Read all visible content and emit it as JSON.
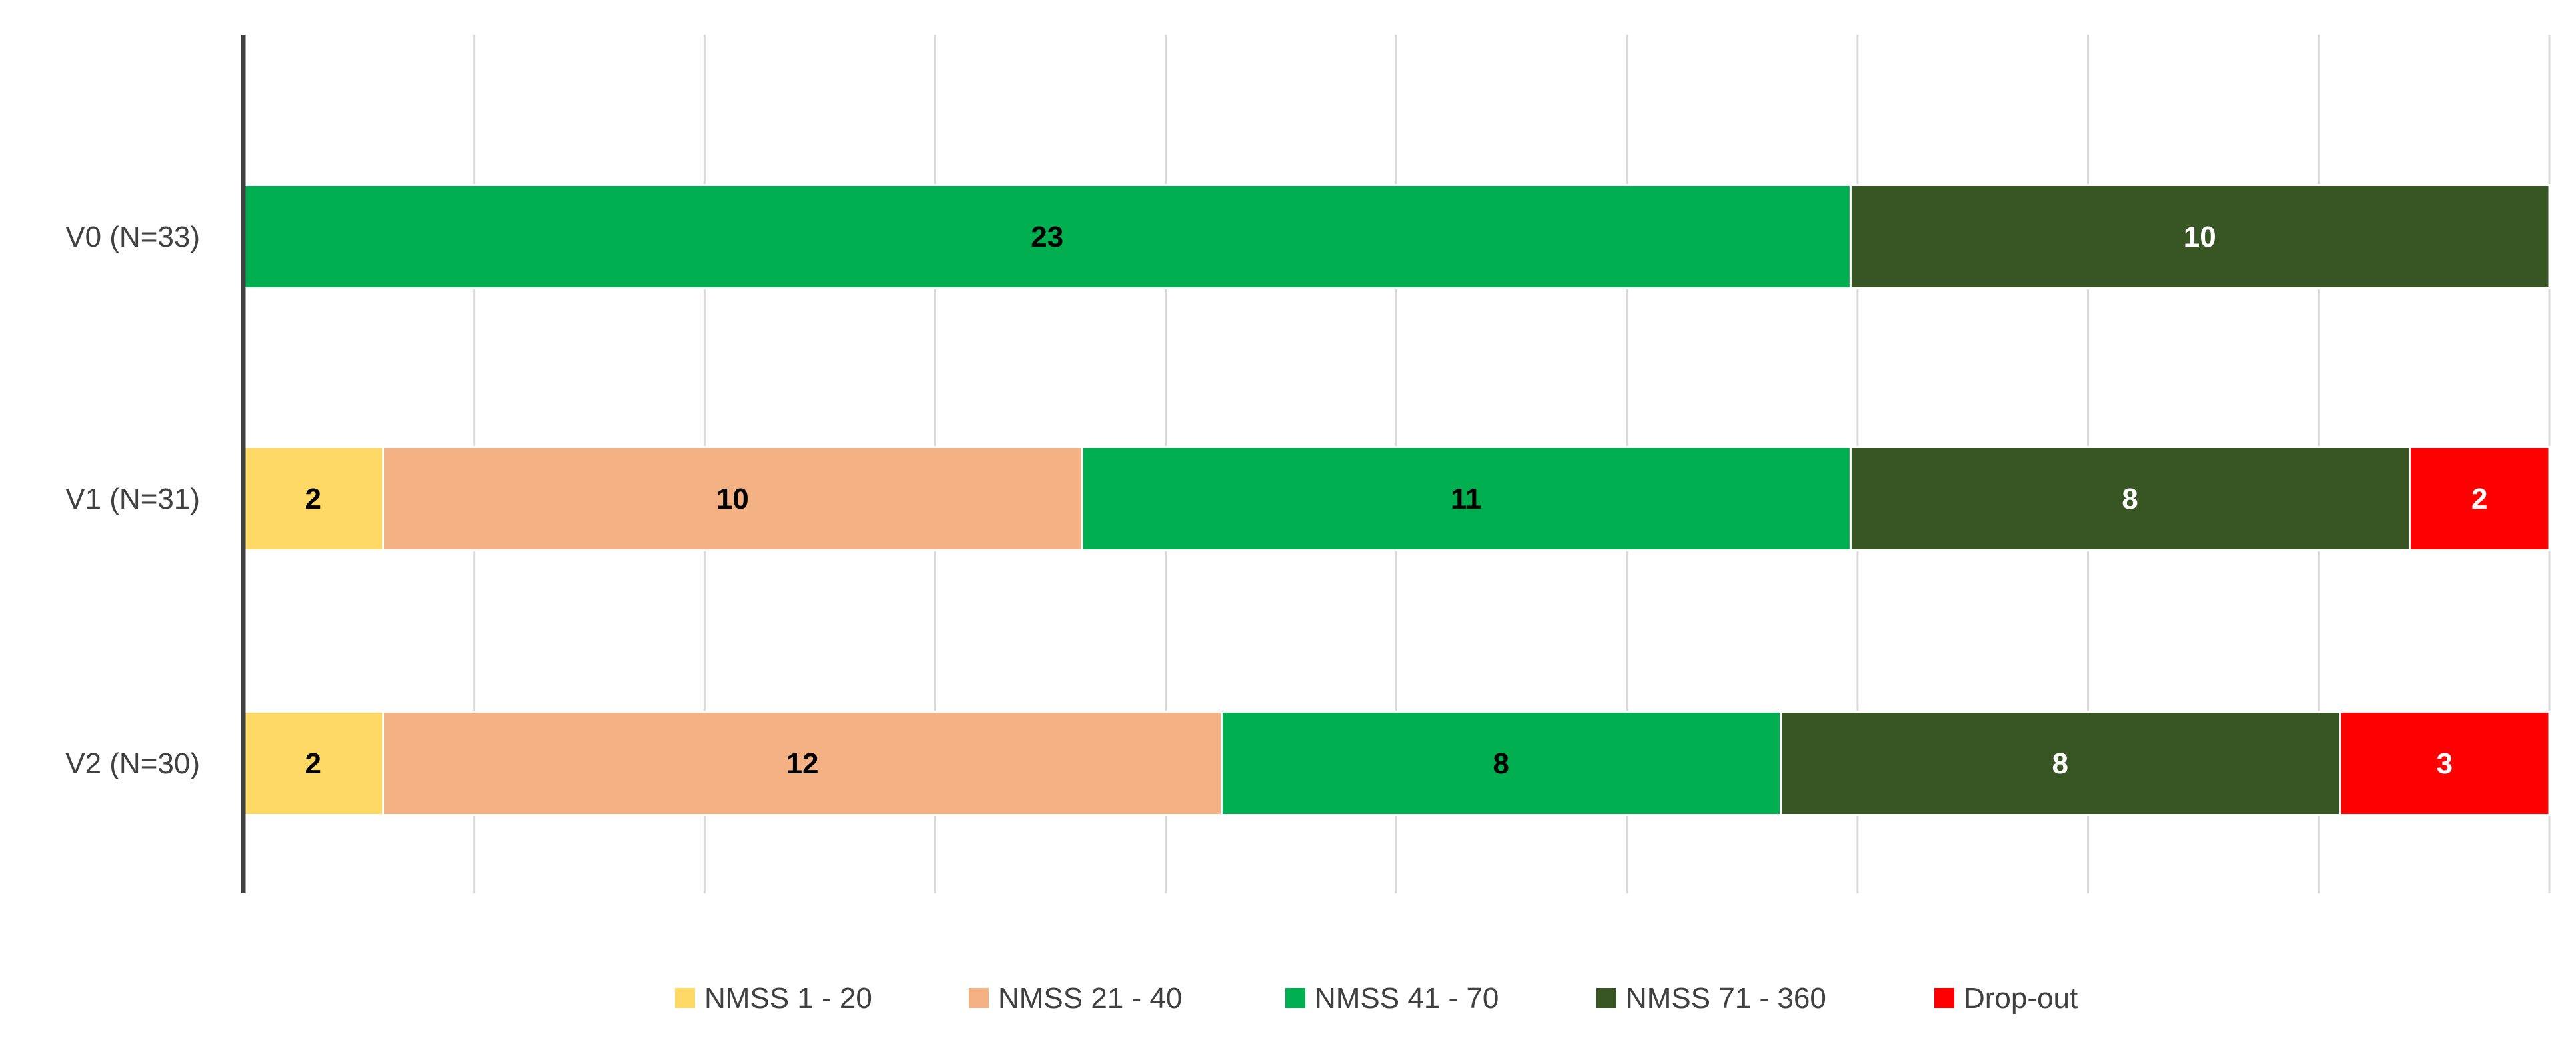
{
  "chart_data": {
    "type": "bar",
    "orientation": "horizontal",
    "stacked": true,
    "title": "",
    "xlabel": "",
    "ylabel": "",
    "xlim": [
      0,
      33
    ],
    "x_tick_labels_shown": false,
    "grid": true,
    "legend_position": "bottom",
    "categories": [
      "V0 (N=33)",
      "V1 (N=31)",
      "V2 (N=30)"
    ],
    "series": [
      {
        "name": "NMSS 1 - 20",
        "color": "#FFD966",
        "label_color": "#000000",
        "values": [
          0,
          2,
          2
        ]
      },
      {
        "name": "NMSS 21 - 40",
        "color": "#F4B183",
        "label_color": "#000000",
        "values": [
          0,
          10,
          12
        ]
      },
      {
        "name": "NMSS 41 - 70",
        "color": "#00B050",
        "label_color": "#000000",
        "values": [
          23,
          11,
          8
        ]
      },
      {
        "name": "NMSS 71 - 360",
        "color": "#375623",
        "label_color": "#FFFFFF",
        "values": [
          10,
          8,
          8
        ]
      },
      {
        "name": "Drop-out",
        "color": "#FF0000",
        "label_color": "#FFFFFF",
        "values": [
          0,
          2,
          3
        ]
      }
    ]
  }
}
